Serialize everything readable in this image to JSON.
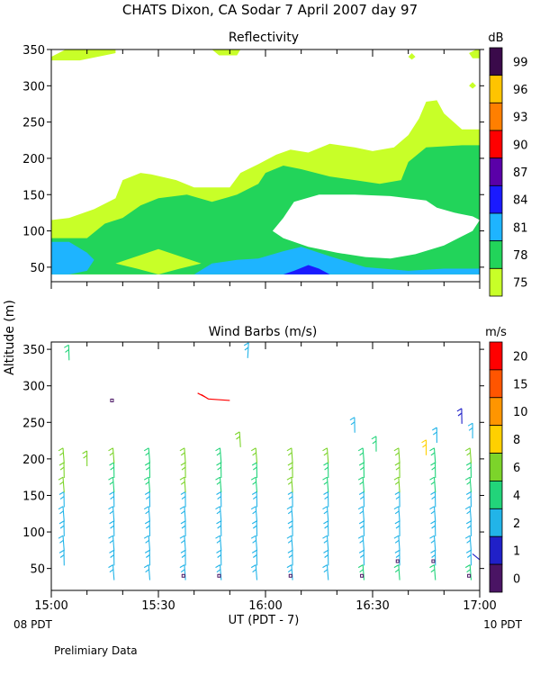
{
  "title": "CHATS Dixon, CA  Sodar    7 April 2007   day  97",
  "ylabel": "Altitude (m)",
  "xlabel": "UT  (PDT - 7)",
  "x_start_local": "08 PDT",
  "x_end_local": "10 PDT",
  "footnote": "Prelimiary Data",
  "x_ticks": [
    "15:00",
    "15:30",
    "16:00",
    "16:30",
    "17:00"
  ],
  "chart_data": [
    {
      "type": "heatmap",
      "title": "Reflectivity",
      "colorbar_unit": "dB",
      "y_ticks": [
        50,
        100,
        150,
        200,
        250,
        300,
        350
      ],
      "ylim": [
        30,
        350
      ],
      "xlim": [
        "15:00",
        "17:00"
      ],
      "colorbar": [
        {
          "label": "99",
          "color": "#3a0a4a"
        },
        {
          "label": "96",
          "color": "#ffc400"
        },
        {
          "label": "93",
          "color": "#ff7f00"
        },
        {
          "label": "90",
          "color": "#ff0000"
        },
        {
          "label": "87",
          "color": "#5a00a8"
        },
        {
          "label": "84",
          "color": "#1a1aff"
        },
        {
          "label": "81",
          "color": "#1eb4ff"
        },
        {
          "label": "78",
          "color": "#22d45a"
        },
        {
          "label": "75",
          "color": "#c8ff28"
        }
      ],
      "contours": [
        {
          "level": "75",
          "color": "#c8ff28",
          "points": [
            [
              "15:00",
              40
            ],
            [
              "17:00",
              40
            ],
            [
              "17:00",
              350
            ],
            [
              "15:00",
              350
            ]
          ]
        },
        {
          "level": "blank",
          "color": "#ffffff",
          "points": [
            [
              "15:00",
              115
            ],
            [
              "15:05",
              118
            ],
            [
              "15:12",
              130
            ],
            [
              "15:18",
              145
            ],
            [
              "15:20",
              170
            ],
            [
              "15:25",
              180
            ],
            [
              "15:28",
              178
            ],
            [
              "15:35",
              170
            ],
            [
              "15:40",
              160
            ],
            [
              "15:45",
              160
            ],
            [
              "15:50",
              160
            ],
            [
              "15:53",
              180
            ],
            [
              "15:58",
              192
            ],
            [
              "16:03",
              205
            ],
            [
              "16:07",
              212
            ],
            [
              "16:12",
              208
            ],
            [
              "16:18",
              220
            ],
            [
              "16:25",
              215
            ],
            [
              "16:30",
              210
            ],
            [
              "16:36",
              215
            ],
            [
              "16:40",
              232
            ],
            [
              "16:43",
              255
            ],
            [
              "16:45",
              278
            ],
            [
              "16:48",
              280
            ],
            [
              "16:50",
              262
            ],
            [
              "16:55",
              240
            ],
            [
              "17:00",
              240
            ],
            [
              "17:00",
              350
            ],
            [
              "15:00",
              350
            ]
          ]
        },
        {
          "level": "75",
          "color": "#c8ff28",
          "points": [
            [
              "15:00",
              340
            ],
            [
              "15:04",
              352
            ],
            [
              "15:18",
              352
            ],
            [
              "15:18",
              345
            ],
            [
              "15:08",
              335
            ],
            [
              "15:00",
              335
            ]
          ]
        },
        {
          "level": "75",
          "color": "#c8ff28",
          "points": [
            [
              "15:45",
              352
            ],
            [
              "15:53",
              352
            ],
            [
              "15:52",
              342
            ],
            [
              "15:47",
              342
            ]
          ]
        },
        {
          "level": "75",
          "color": "#c8ff28",
          "points": [
            [
              "16:40",
              340
            ],
            [
              "16:41",
              345
            ],
            [
              "16:42",
              340
            ],
            [
              "16:41",
              336
            ]
          ]
        },
        {
          "level": "75",
          "color": "#c8ff28",
          "points": [
            [
              "16:57",
              345
            ],
            [
              "16:59",
              352
            ],
            [
              "17:00",
              352
            ],
            [
              "17:00",
              338
            ],
            [
              "16:58",
              338
            ]
          ]
        },
        {
          "level": "75",
          "color": "#c8ff28",
          "points": [
            [
              "16:57",
              300
            ],
            [
              "16:58",
              305
            ],
            [
              "16:59",
              300
            ],
            [
              "16:58",
              296
            ]
          ]
        },
        {
          "level": "78",
          "color": "#22d45a",
          "points": [
            [
              "15:00",
              90
            ],
            [
              "15:10",
              90
            ],
            [
              "15:15",
              110
            ],
            [
              "15:20",
              118
            ],
            [
              "15:25",
              135
            ],
            [
              "15:30",
              145
            ],
            [
              "15:38",
              150
            ],
            [
              "15:45",
              140
            ],
            [
              "15:52",
              150
            ],
            [
              "15:58",
              165
            ],
            [
              "16:00",
              180
            ],
            [
              "16:05",
              190
            ],
            [
              "16:10",
              185
            ],
            [
              "16:18",
              175
            ],
            [
              "16:25",
              170
            ],
            [
              "16:32",
              165
            ],
            [
              "16:38",
              170
            ],
            [
              "16:40",
              195
            ],
            [
              "16:45",
              215
            ],
            [
              "16:55",
              218
            ],
            [
              "17:00",
              218
            ],
            [
              "17:00",
              40
            ],
            [
              "15:00",
              40
            ]
          ]
        },
        {
          "level": "75",
          "color": "#c8ff28",
          "points": [
            [
              "15:18",
              55
            ],
            [
              "15:24",
              65
            ],
            [
              "15:30",
              75
            ],
            [
              "15:36",
              65
            ],
            [
              "15:42",
              55
            ],
            [
              "15:36",
              48
            ],
            [
              "15:30",
              40
            ],
            [
              "15:24",
              48
            ]
          ]
        },
        {
          "level": "blank",
          "color": "#ffffff",
          "points": [
            [
              "16:02",
              100
            ],
            [
              "16:05",
              118
            ],
            [
              "16:08",
              140
            ],
            [
              "16:15",
              150
            ],
            [
              "16:25",
              150
            ],
            [
              "16:35",
              148
            ],
            [
              "16:45",
              142
            ],
            [
              "16:48",
              132
            ],
            [
              "16:53",
              125
            ],
            [
              "16:58",
              120
            ],
            [
              "17:00",
              115
            ],
            [
              "16:58",
              100
            ],
            [
              "16:50",
              80
            ],
            [
              "16:42",
              68
            ],
            [
              "16:35",
              62
            ],
            [
              "16:28",
              64
            ],
            [
              "16:20",
              70
            ],
            [
              "16:12",
              78
            ],
            [
              "16:05",
              90
            ]
          ]
        },
        {
          "level": "81",
          "color": "#1eb4ff",
          "points": [
            [
              "15:00",
              85
            ],
            [
              "15:05",
              85
            ],
            [
              "15:10",
              70
            ],
            [
              "15:12",
              60
            ],
            [
              "15:10",
              45
            ],
            [
              "15:05",
              40
            ],
            [
              "15:00",
              40
            ]
          ]
        },
        {
          "level": "81",
          "color": "#1eb4ff",
          "points": [
            [
              "15:40",
              40
            ],
            [
              "15:45",
              55
            ],
            [
              "15:52",
              60
            ],
            [
              "15:58",
              62
            ],
            [
              "16:05",
              72
            ],
            [
              "16:10",
              78
            ],
            [
              "16:18",
              65
            ],
            [
              "16:28",
              50
            ],
            [
              "16:40",
              45
            ],
            [
              "16:50",
              48
            ],
            [
              "17:00",
              48
            ],
            [
              "17:00",
              40
            ]
          ]
        },
        {
          "level": "84",
          "color": "#1a1aff",
          "points": [
            [
              "16:05",
              40
            ],
            [
              "16:08",
              45
            ],
            [
              "16:12",
              53
            ],
            [
              "16:15",
              48
            ],
            [
              "16:18",
              40
            ]
          ]
        }
      ]
    },
    {
      "type": "scatter",
      "title": "Wind Barbs (m/s)",
      "colorbar_unit": "m/s",
      "y_ticks": [
        50,
        100,
        150,
        200,
        250,
        300,
        350
      ],
      "ylim": [
        20,
        360
      ],
      "xlim": [
        "15:00",
        "17:00"
      ],
      "colorbar": [
        {
          "label": "20",
          "color": "#ff0000"
        },
        {
          "label": "15",
          "color": "#ff5500"
        },
        {
          "label": "10",
          "color": "#ff9500"
        },
        {
          "label": "8",
          "color": "#ffd000"
        },
        {
          "label": "6",
          "color": "#7cd42a"
        },
        {
          "label": "4",
          "color": "#22d47a"
        },
        {
          "label": "2",
          "color": "#22b4e8"
        },
        {
          "label": "1",
          "color": "#2020c8"
        },
        {
          "label": "0",
          "color": "#4a1464"
        }
      ]
    }
  ]
}
